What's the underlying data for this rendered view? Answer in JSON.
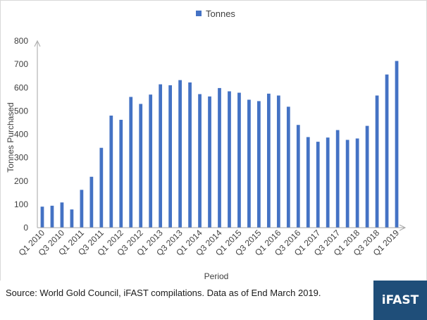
{
  "chart_data": {
    "type": "bar",
    "legend": {
      "label": "Tonnes",
      "position": "top"
    },
    "xlabel": "Period",
    "ylabel": "Tonnes Purchased",
    "ylim": [
      0,
      800
    ],
    "yticks": [
      0,
      100,
      200,
      300,
      400,
      500,
      600,
      700,
      800
    ],
    "grid": false,
    "color": "#4472c4",
    "categories": [
      "Q1 2010",
      "Q2 2010",
      "Q3 2010",
      "Q4 2010",
      "Q1 2011",
      "Q2 2011",
      "Q3 2011",
      "Q4 2011",
      "Q1 2012",
      "Q2 2012",
      "Q3 2012",
      "Q4 2012",
      "Q1 2013",
      "Q2 2013",
      "Q3 2013",
      "Q4 2013",
      "Q1 2014",
      "Q2 2014",
      "Q3 2014",
      "Q4 2014",
      "Q1 2015",
      "Q2 2015",
      "Q3 2015",
      "Q4 2015",
      "Q1 2016",
      "Q2 2016",
      "Q3 2016",
      "Q4 2016",
      "Q1 2017",
      "Q2 2017",
      "Q3 2017",
      "Q4 2017",
      "Q1 2018",
      "Q2 2018",
      "Q3 2018",
      "Q4 2018",
      "Q1 2019"
    ],
    "shown_tick_labels": [
      "Q1 2010",
      "Q3 2010",
      "Q1 2011",
      "Q3 2011",
      "Q1 2012",
      "Q3 2012",
      "Q1 2013",
      "Q3 2013",
      "Q1 2014",
      "Q3 2014",
      "Q1 2015",
      "Q3 2015",
      "Q1 2016",
      "Q3 2016",
      "Q1 2017",
      "Q3 2017",
      "Q1 2018",
      "Q3 2018",
      "Q1 2019"
    ],
    "values": [
      90,
      94,
      108,
      78,
      162,
      218,
      342,
      480,
      462,
      560,
      530,
      570,
      614,
      610,
      632,
      622,
      572,
      562,
      598,
      584,
      578,
      548,
      542,
      574,
      566,
      518,
      440,
      388,
      368,
      386,
      418,
      376,
      382,
      436,
      566,
      656,
      714
    ]
  },
  "footer": {
    "source": "Source: World Gold Council, iFAST compilations. Data as of End March 2019.",
    "logo": "iFAST"
  }
}
